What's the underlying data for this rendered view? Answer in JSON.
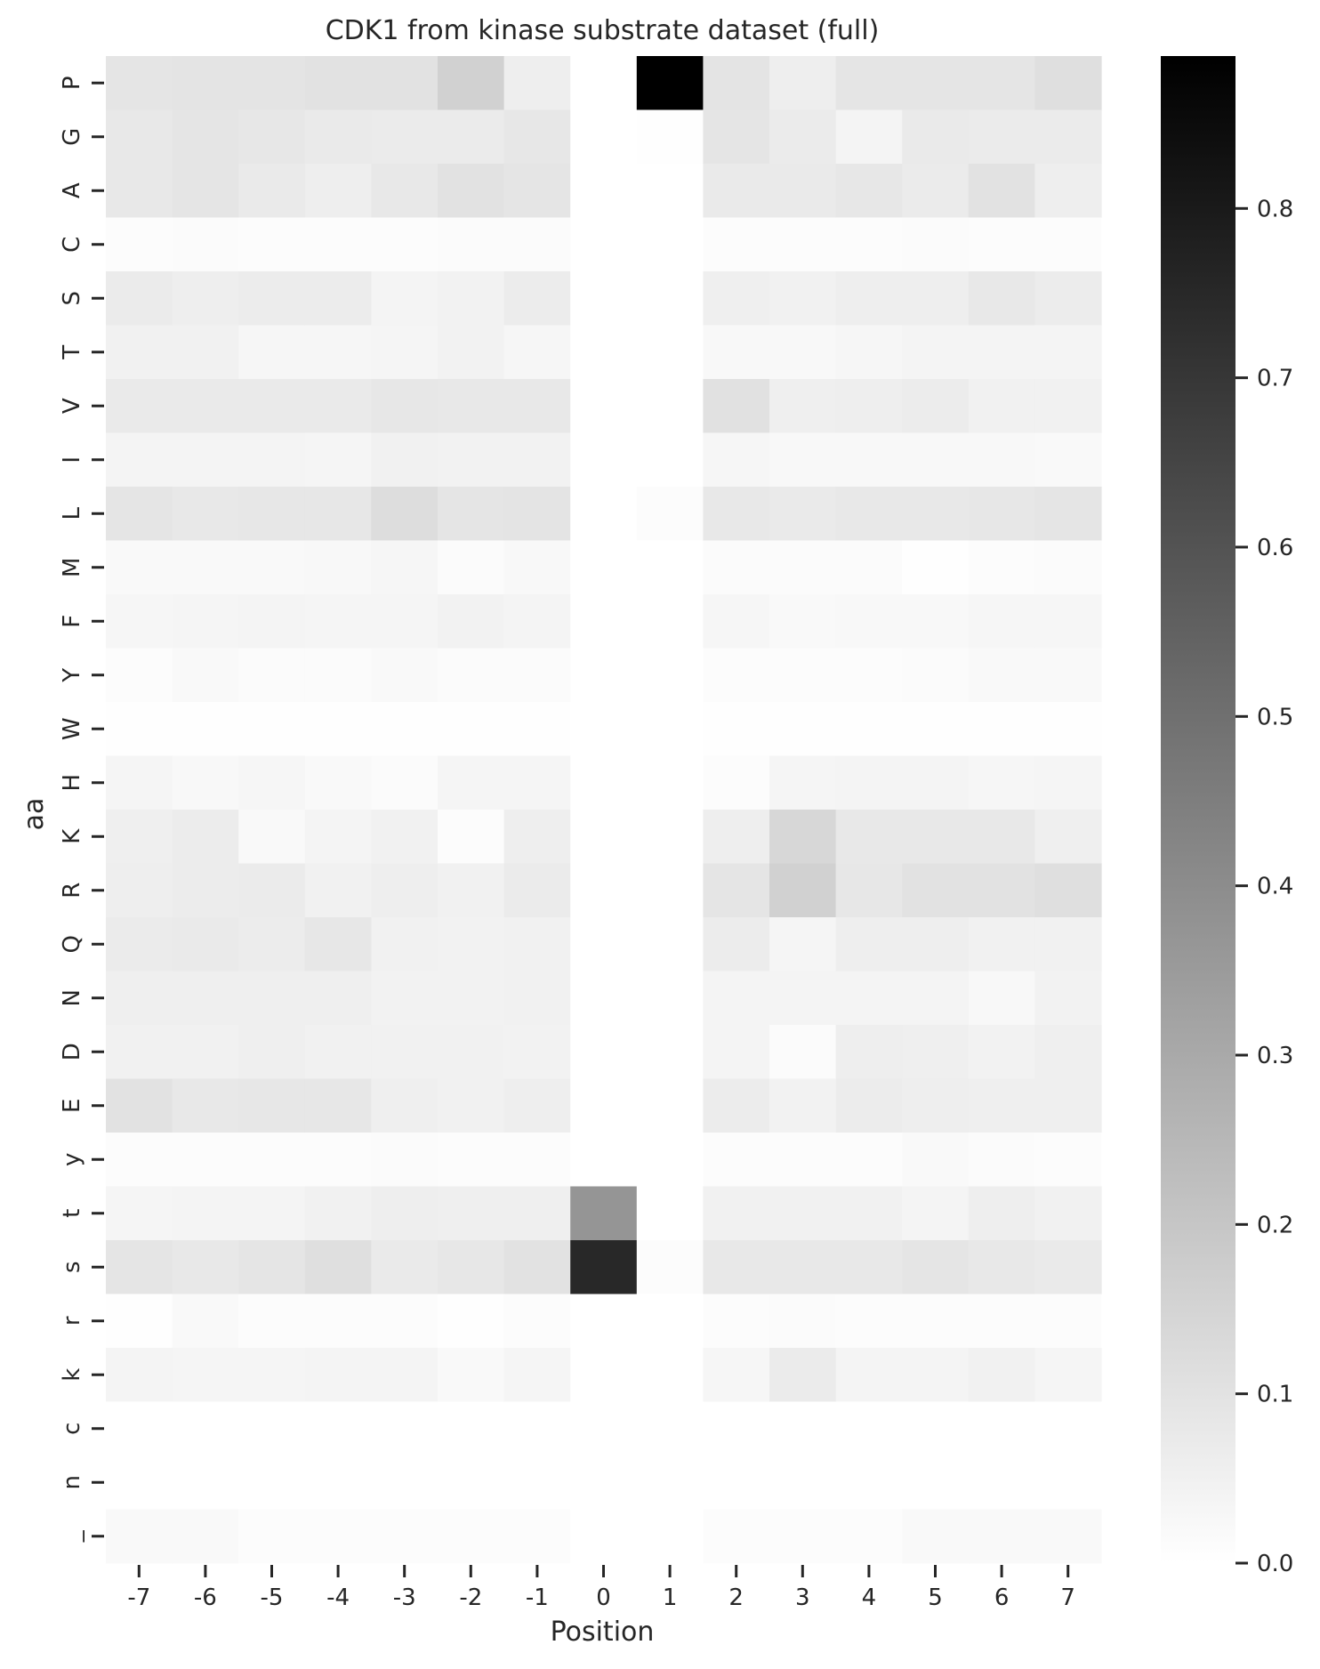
{
  "chart_data": {
    "type": "heatmap",
    "title": "CDK1 from kinase substrate dataset (full)",
    "xlabel": "Position",
    "ylabel": "aa",
    "x": [
      "-7",
      "-6",
      "-5",
      "-4",
      "-3",
      "-2",
      "-1",
      "0",
      "1",
      "2",
      "3",
      "4",
      "5",
      "6",
      "7"
    ],
    "y": [
      "P",
      "G",
      "A",
      "C",
      "S",
      "T",
      "V",
      "I",
      "L",
      "M",
      "F",
      "Y",
      "W",
      "H",
      "K",
      "R",
      "Q",
      "N",
      "D",
      "E",
      "y",
      "t",
      "s",
      "r",
      "k",
      "c",
      "n",
      "_"
    ],
    "values": [
      [
        0.09,
        0.095,
        0.095,
        0.1,
        0.1,
        0.16,
        0.06,
        0.0,
        0.89,
        0.095,
        0.06,
        0.09,
        0.09,
        0.09,
        0.11
      ],
      [
        0.08,
        0.09,
        0.085,
        0.075,
        0.07,
        0.07,
        0.085,
        0.0,
        0.005,
        0.09,
        0.07,
        0.04,
        0.075,
        0.07,
        0.07
      ],
      [
        0.08,
        0.09,
        0.075,
        0.06,
        0.08,
        0.1,
        0.09,
        0.0,
        0.0,
        0.075,
        0.075,
        0.085,
        0.07,
        0.1,
        0.06
      ],
      [
        0.01,
        0.015,
        0.01,
        0.01,
        0.01,
        0.015,
        0.015,
        0.0,
        0.0,
        0.01,
        0.01,
        0.01,
        0.015,
        0.01,
        0.01
      ],
      [
        0.07,
        0.06,
        0.065,
        0.065,
        0.04,
        0.045,
        0.065,
        0.0,
        0.0,
        0.055,
        0.05,
        0.06,
        0.06,
        0.08,
        0.065
      ],
      [
        0.05,
        0.05,
        0.03,
        0.03,
        0.035,
        0.045,
        0.03,
        0.0,
        0.0,
        0.025,
        0.025,
        0.03,
        0.04,
        0.04,
        0.04
      ],
      [
        0.075,
        0.075,
        0.075,
        0.075,
        0.085,
        0.08,
        0.08,
        0.0,
        0.0,
        0.105,
        0.055,
        0.06,
        0.065,
        0.05,
        0.05
      ],
      [
        0.04,
        0.04,
        0.04,
        0.035,
        0.05,
        0.045,
        0.045,
        0.0,
        0.0,
        0.03,
        0.025,
        0.025,
        0.025,
        0.025,
        0.02
      ],
      [
        0.09,
        0.08,
        0.085,
        0.085,
        0.12,
        0.09,
        0.095,
        0.0,
        0.01,
        0.08,
        0.075,
        0.08,
        0.08,
        0.085,
        0.09
      ],
      [
        0.02,
        0.02,
        0.02,
        0.025,
        0.03,
        0.015,
        0.025,
        0.0,
        0.0,
        0.015,
        0.015,
        0.015,
        0.005,
        0.01,
        0.015
      ],
      [
        0.03,
        0.035,
        0.04,
        0.035,
        0.035,
        0.045,
        0.04,
        0.0,
        0.0,
        0.03,
        0.02,
        0.025,
        0.025,
        0.03,
        0.03
      ],
      [
        0.01,
        0.02,
        0.015,
        0.015,
        0.02,
        0.015,
        0.015,
        0.0,
        0.0,
        0.01,
        0.01,
        0.01,
        0.015,
        0.02,
        0.02
      ],
      [
        0.005,
        0.005,
        0.005,
        0.005,
        0.005,
        0.005,
        0.005,
        0.0,
        0.0,
        0.005,
        0.005,
        0.005,
        0.005,
        0.005,
        0.005
      ],
      [
        0.035,
        0.025,
        0.03,
        0.02,
        0.015,
        0.035,
        0.035,
        0.0,
        0.0,
        0.01,
        0.035,
        0.04,
        0.04,
        0.03,
        0.035
      ],
      [
        0.055,
        0.065,
        0.02,
        0.04,
        0.05,
        0.01,
        0.06,
        0.0,
        0.0,
        0.06,
        0.14,
        0.08,
        0.08,
        0.08,
        0.055
      ],
      [
        0.06,
        0.065,
        0.07,
        0.05,
        0.06,
        0.05,
        0.07,
        0.0,
        0.0,
        0.09,
        0.16,
        0.085,
        0.1,
        0.1,
        0.11
      ],
      [
        0.07,
        0.075,
        0.065,
        0.085,
        0.05,
        0.045,
        0.05,
        0.0,
        0.0,
        0.065,
        0.035,
        0.06,
        0.06,
        0.05,
        0.05
      ],
      [
        0.055,
        0.055,
        0.055,
        0.055,
        0.045,
        0.045,
        0.05,
        0.0,
        0.0,
        0.04,
        0.04,
        0.04,
        0.04,
        0.025,
        0.045
      ],
      [
        0.05,
        0.05,
        0.055,
        0.05,
        0.05,
        0.05,
        0.045,
        0.0,
        0.0,
        0.04,
        0.015,
        0.06,
        0.055,
        0.045,
        0.055
      ],
      [
        0.1,
        0.08,
        0.085,
        0.085,
        0.055,
        0.05,
        0.06,
        0.0,
        0.0,
        0.065,
        0.045,
        0.065,
        0.06,
        0.055,
        0.055
      ],
      [
        0.01,
        0.01,
        0.01,
        0.01,
        0.015,
        0.01,
        0.01,
        0.0,
        0.0,
        0.01,
        0.01,
        0.01,
        0.02,
        0.015,
        0.01
      ],
      [
        0.035,
        0.04,
        0.04,
        0.05,
        0.06,
        0.055,
        0.055,
        0.37,
        0.0,
        0.05,
        0.05,
        0.05,
        0.04,
        0.06,
        0.05
      ],
      [
        0.09,
        0.08,
        0.09,
        0.11,
        0.075,
        0.085,
        0.1,
        0.75,
        0.01,
        0.08,
        0.08,
        0.08,
        0.09,
        0.08,
        0.075
      ],
      [
        0.005,
        0.02,
        0.01,
        0.01,
        0.01,
        0.005,
        0.01,
        0.0,
        0.0,
        0.01,
        0.015,
        0.01,
        0.01,
        0.01,
        0.01
      ],
      [
        0.04,
        0.035,
        0.035,
        0.04,
        0.04,
        0.02,
        0.035,
        0.0,
        0.0,
        0.03,
        0.07,
        0.04,
        0.04,
        0.05,
        0.035
      ],
      [
        0.0,
        0.0,
        0.0,
        0.0,
        0.0,
        0.0,
        0.0,
        0.0,
        0.0,
        0.0,
        0.0,
        0.0,
        0.0,
        0.0,
        0.0
      ],
      [
        0.0,
        0.0,
        0.0,
        0.0,
        0.0,
        0.0,
        0.0,
        0.0,
        0.0,
        0.0,
        0.0,
        0.0,
        0.0,
        0.0,
        0.0
      ],
      [
        0.02,
        0.02,
        0.01,
        0.01,
        0.01,
        0.01,
        0.01,
        0.0,
        0.0,
        0.01,
        0.01,
        0.01,
        0.02,
        0.02,
        0.02
      ]
    ],
    "colormap": "white-to-black (Greys)",
    "vmin": 0,
    "vmax": 0.89,
    "colorbar_ticks": [
      0.0,
      0.1,
      0.2,
      0.3,
      0.4,
      0.5,
      0.6,
      0.7,
      0.8
    ],
    "colorbar_tick_labels": [
      "0.0",
      "0.1",
      "0.2",
      "0.3",
      "0.4",
      "0.5",
      "0.6",
      "0.7",
      "0.8"
    ],
    "grid": false,
    "legend": "colorbar-right"
  }
}
